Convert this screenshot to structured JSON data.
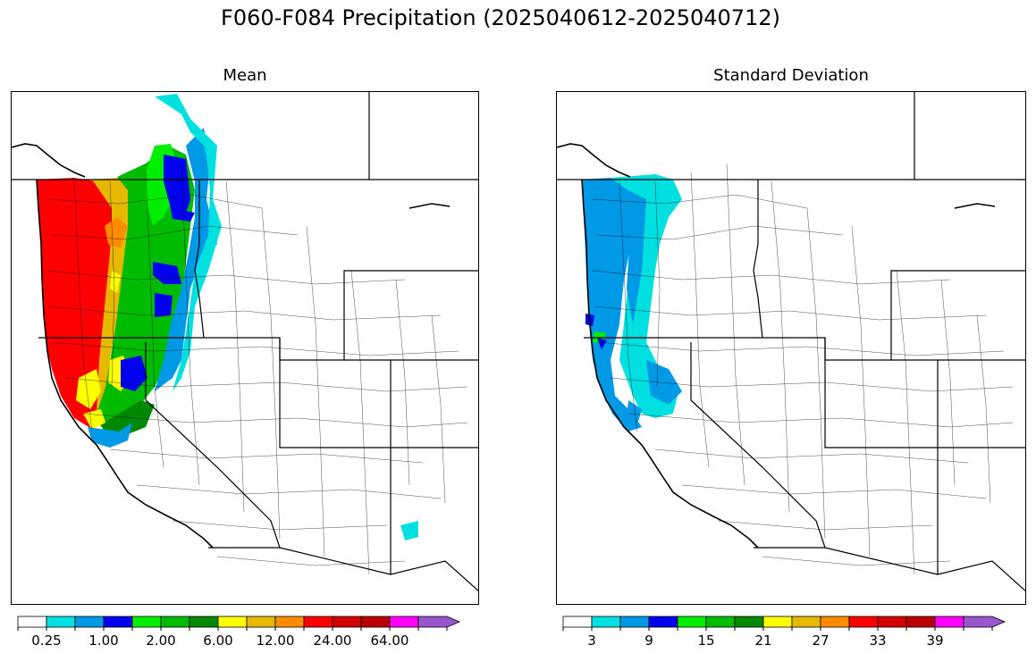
{
  "title": "F060-F084 Precipitation (2025040612-2025040712)",
  "panels": [
    {
      "title": "Mean",
      "colorbar": {
        "colors": [
          "#ffffff",
          "#00e0e0",
          "#0099e6",
          "#0000ee",
          "#00ee00",
          "#00bb00",
          "#008800",
          "#ffff00",
          "#e6b800",
          "#ff8c00",
          "#ff0000",
          "#d40000",
          "#bb0000",
          "#ff00ff",
          "#9955cc"
        ],
        "tick_labels": [
          "0.25",
          "1.00",
          "2.00",
          "6.00",
          "12.00",
          "24.00",
          "64.00"
        ],
        "tick_boundaries": [
          1,
          3,
          5,
          7,
          9,
          11,
          13
        ]
      }
    },
    {
      "title": "Standard Deviation",
      "colorbar": {
        "colors": [
          "#ffffff",
          "#00e0e0",
          "#0099e6",
          "#0000ee",
          "#00ee00",
          "#00bb00",
          "#008800",
          "#ffff00",
          "#e6b800",
          "#ff8c00",
          "#ff0000",
          "#d40000",
          "#bb0000",
          "#ff00ff",
          "#9955cc"
        ],
        "tick_labels": [
          "3",
          "9",
          "15",
          "21",
          "27",
          "33",
          "39"
        ],
        "tick_boundaries": [
          1,
          3,
          5,
          7,
          9,
          11,
          13
        ]
      }
    }
  ]
}
